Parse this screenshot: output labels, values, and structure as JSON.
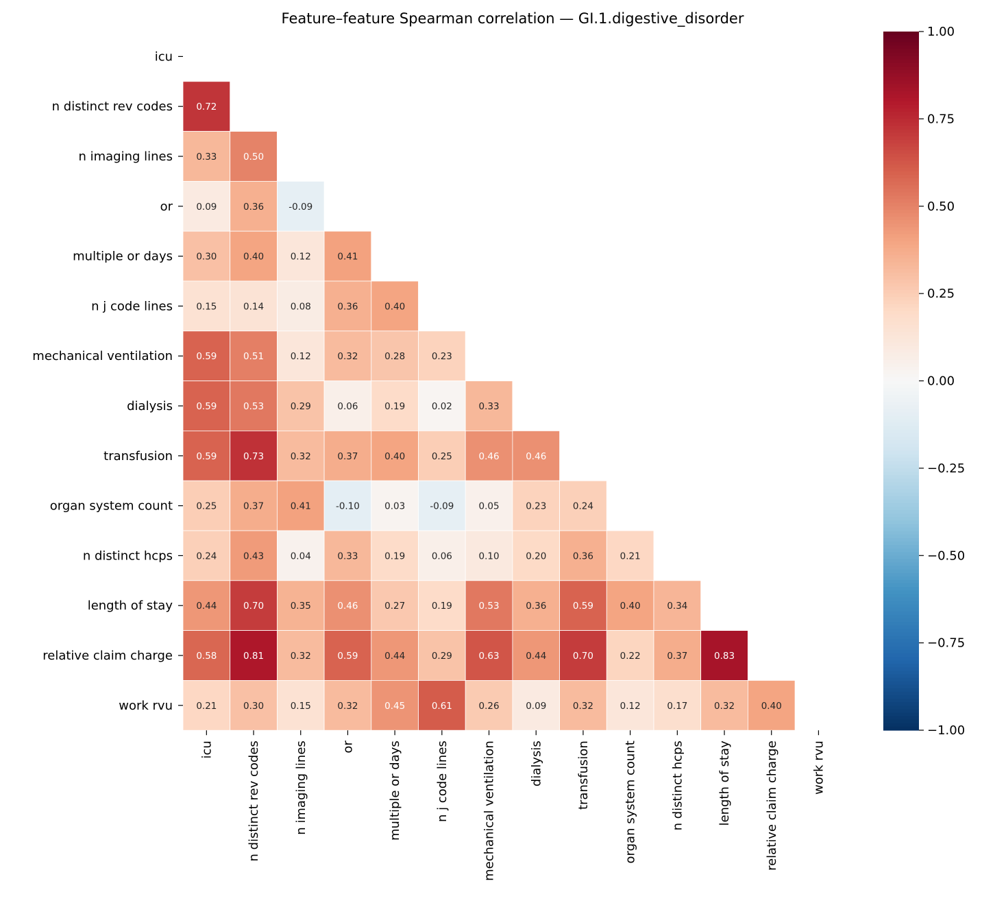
{
  "chart_data": {
    "type": "heatmap",
    "title": "Feature–feature Spearman correlation — GI.1.digestive_disorder",
    "labels": [
      "icu",
      "n distinct rev codes",
      "n imaging lines",
      "or",
      "multiple or days",
      "n j code lines",
      "mechanical ventilation",
      "dialysis",
      "transfusion",
      "organ system count",
      "n distinct hcps",
      "length of stay",
      "relative claim charge",
      "work rvu"
    ],
    "mask": "upper triangle incl. diagonal",
    "lower_triangle": [
      [],
      [
        0.72
      ],
      [
        0.33,
        0.5
      ],
      [
        0.09,
        0.36,
        -0.09
      ],
      [
        0.3,
        0.4,
        0.12,
        0.41
      ],
      [
        0.15,
        0.14,
        0.08,
        0.36,
        0.4
      ],
      [
        0.59,
        0.51,
        0.12,
        0.32,
        0.28,
        0.23
      ],
      [
        0.59,
        0.53,
        0.29,
        0.06,
        0.19,
        0.02,
        0.33
      ],
      [
        0.59,
        0.73,
        0.32,
        0.37,
        0.4,
        0.25,
        0.46,
        0.46
      ],
      [
        0.25,
        0.37,
        0.41,
        -0.1,
        0.03,
        -0.09,
        0.05,
        0.23,
        0.24
      ],
      [
        0.24,
        0.43,
        0.04,
        0.33,
        0.19,
        0.06,
        0.1,
        0.2,
        0.36,
        0.21
      ],
      [
        0.44,
        0.7,
        0.35,
        0.46,
        0.27,
        0.19,
        0.53,
        0.36,
        0.59,
        0.4,
        0.34
      ],
      [
        0.58,
        0.81,
        0.32,
        0.59,
        0.44,
        0.29,
        0.63,
        0.44,
        0.7,
        0.22,
        0.37,
        0.83
      ],
      [
        0.21,
        0.3,
        0.15,
        0.32,
        0.45,
        0.61,
        0.26,
        0.09,
        0.32,
        0.12,
        0.17,
        0.32,
        0.4
      ]
    ],
    "colormap": "RdBu_r",
    "vmin": -1,
    "vmax": 1,
    "colorbar_ticks": [
      "1.00",
      "0.75",
      "0.50",
      "0.25",
      "0.00",
      "−0.25",
      "−0.50",
      "−0.75",
      "−1.00"
    ],
    "colorbar_tick_values": [
      1,
      0.75,
      0.5,
      0.25,
      0,
      -0.25,
      -0.5,
      -0.75,
      -1
    ]
  }
}
